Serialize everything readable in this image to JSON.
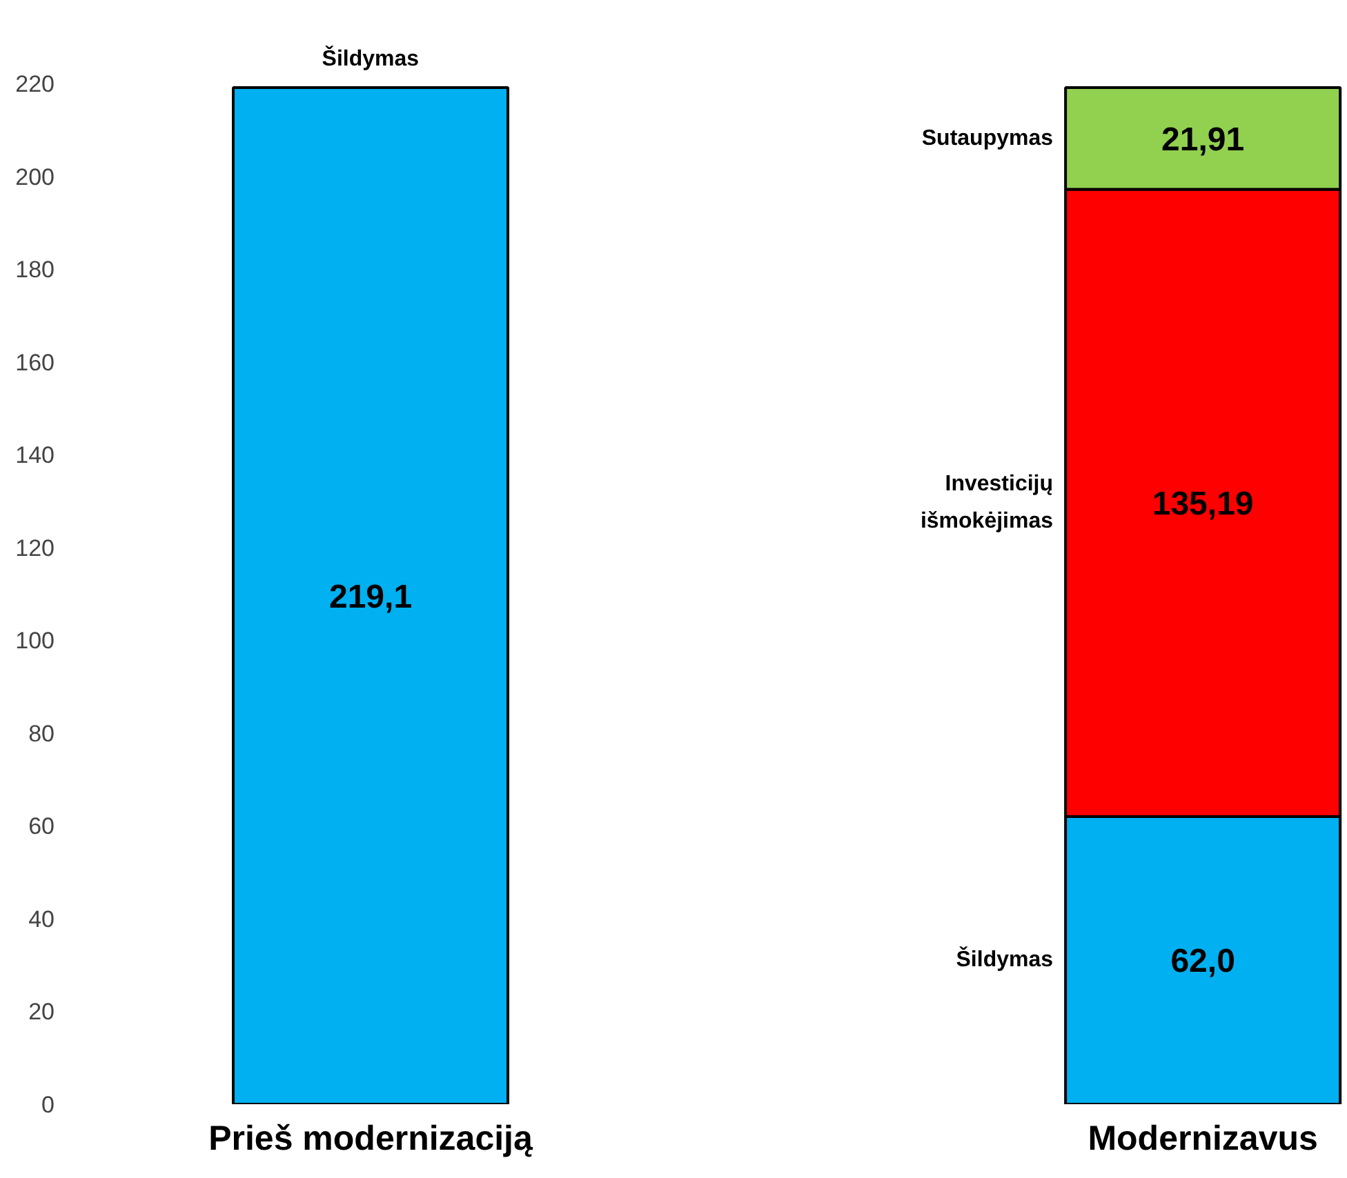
{
  "chart_data": {
    "type": "bar",
    "stacked": true,
    "categories": [
      "Prieš modernizaciją",
      "Modernizavus"
    ],
    "series": [
      {
        "name": "Šildymas",
        "color": "#00b0f0",
        "values": [
          219.1,
          62.0
        ],
        "value_labels": [
          "219,1",
          "62,0"
        ]
      },
      {
        "name": "Investicijų\nišmokėjimas",
        "color": "#ff0000",
        "values": [
          null,
          135.19
        ],
        "value_labels": [
          null,
          "135,19"
        ]
      },
      {
        "name": "Sutaupymas",
        "color": "#92d050",
        "values": [
          null,
          21.91
        ],
        "value_labels": [
          null,
          "21,91"
        ]
      }
    ],
    "ylim": [
      0,
      220
    ],
    "yticks": [
      0,
      20,
      40,
      60,
      80,
      100,
      120,
      140,
      160,
      180,
      200,
      220
    ],
    "annotations": [
      "Šildymas"
    ]
  }
}
